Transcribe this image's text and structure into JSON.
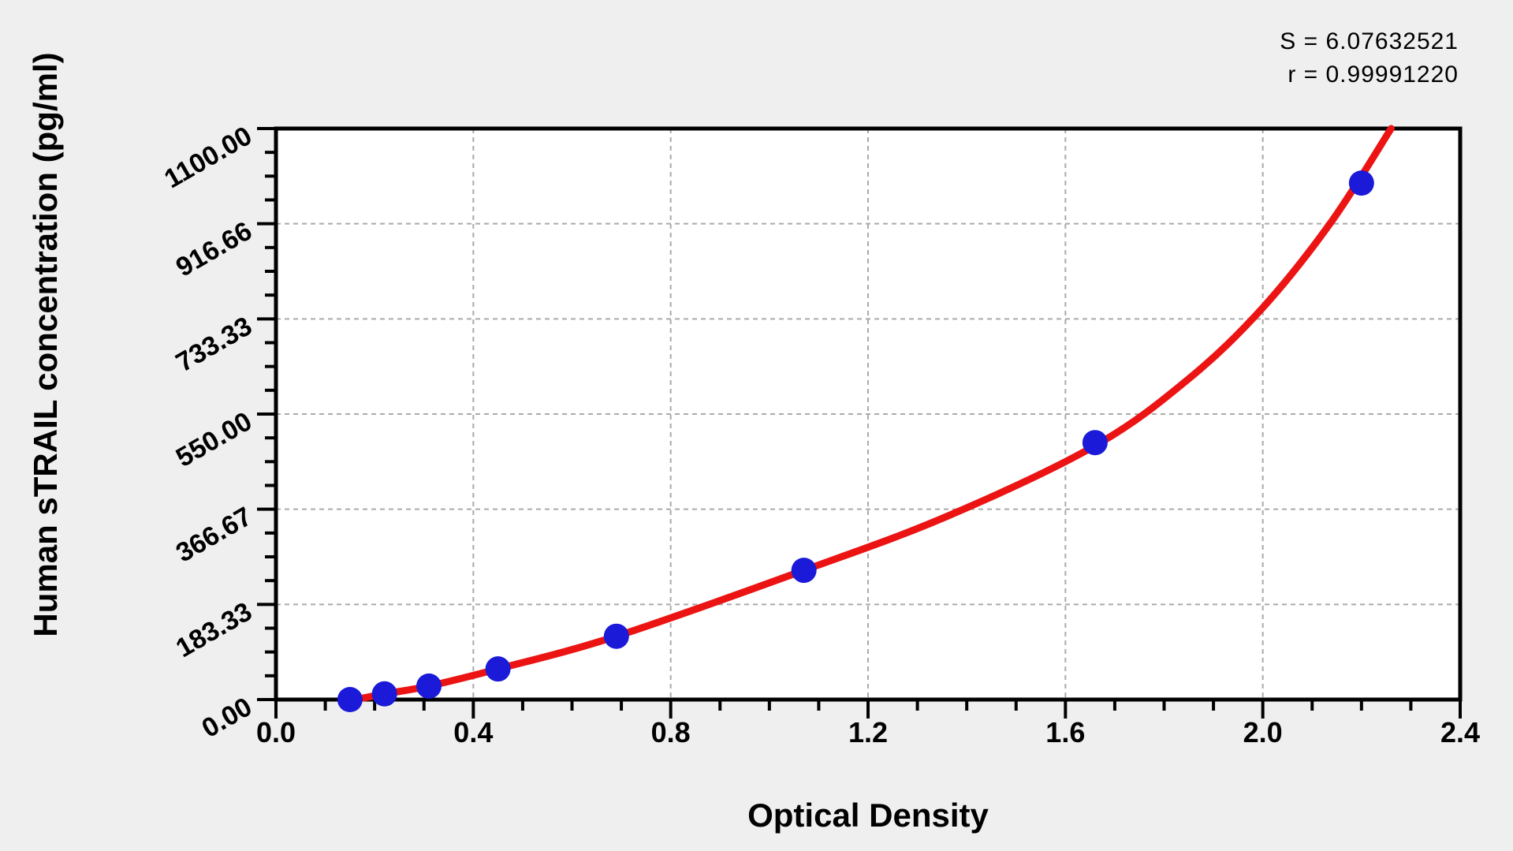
{
  "annotation": {
    "line1": "S = 6.07632521",
    "line2": "r = 0.99991220"
  },
  "chart_data": {
    "type": "scatter",
    "title": "",
    "xlabel": "Optical Density",
    "ylabel": "Human sTRAIL concentration (pg/ml)",
    "xlim": [
      0.0,
      2.4
    ],
    "ylim": [
      0,
      1100
    ],
    "x_major_ticks": [
      0.0,
      0.4,
      0.8,
      1.2,
      1.6,
      2.0,
      2.4
    ],
    "x_tick_labels": [
      "0.0",
      "0.4",
      "0.8",
      "1.2",
      "1.6",
      "2.0",
      "2.4"
    ],
    "x_minor_step": 0.1,
    "y_major_ticks": [
      0,
      183.33,
      366.67,
      550.0,
      733.33,
      916.66,
      1100.0
    ],
    "y_tick_labels": [
      "0.00",
      "183.33",
      "366.67",
      "550.00",
      "733.33",
      "916.66",
      "1100.00"
    ],
    "y_minor_per_major": 4,
    "grid": "dashed-major-both-axes",
    "legend": "none",
    "fit": {
      "S": 6.07632521,
      "r": 0.9999122
    },
    "points": {
      "od": [
        0.15,
        0.22,
        0.31,
        0.45,
        0.69,
        1.07,
        1.66,
        2.2
      ],
      "conc": [
        0,
        11,
        26,
        59,
        122,
        249,
        495,
        995
      ]
    },
    "fit_curve": [
      [
        0.14,
        -4
      ],
      [
        0.22,
        11
      ],
      [
        0.31,
        26
      ],
      [
        0.45,
        59
      ],
      [
        0.69,
        122
      ],
      [
        1.07,
        249
      ],
      [
        1.36,
        353
      ],
      [
        1.66,
        489
      ],
      [
        1.85,
        618
      ],
      [
        2.0,
        755
      ],
      [
        2.14,
        922
      ],
      [
        2.26,
        1100
      ]
    ],
    "colors": {
      "point": "#1a1ad8",
      "curve": "#ec1313",
      "grid": "#aaaaaa",
      "axis": "#000000",
      "plot_bg": "#ffffff",
      "page_bg": "#f0eff0",
      "text": "#000000"
    }
  }
}
